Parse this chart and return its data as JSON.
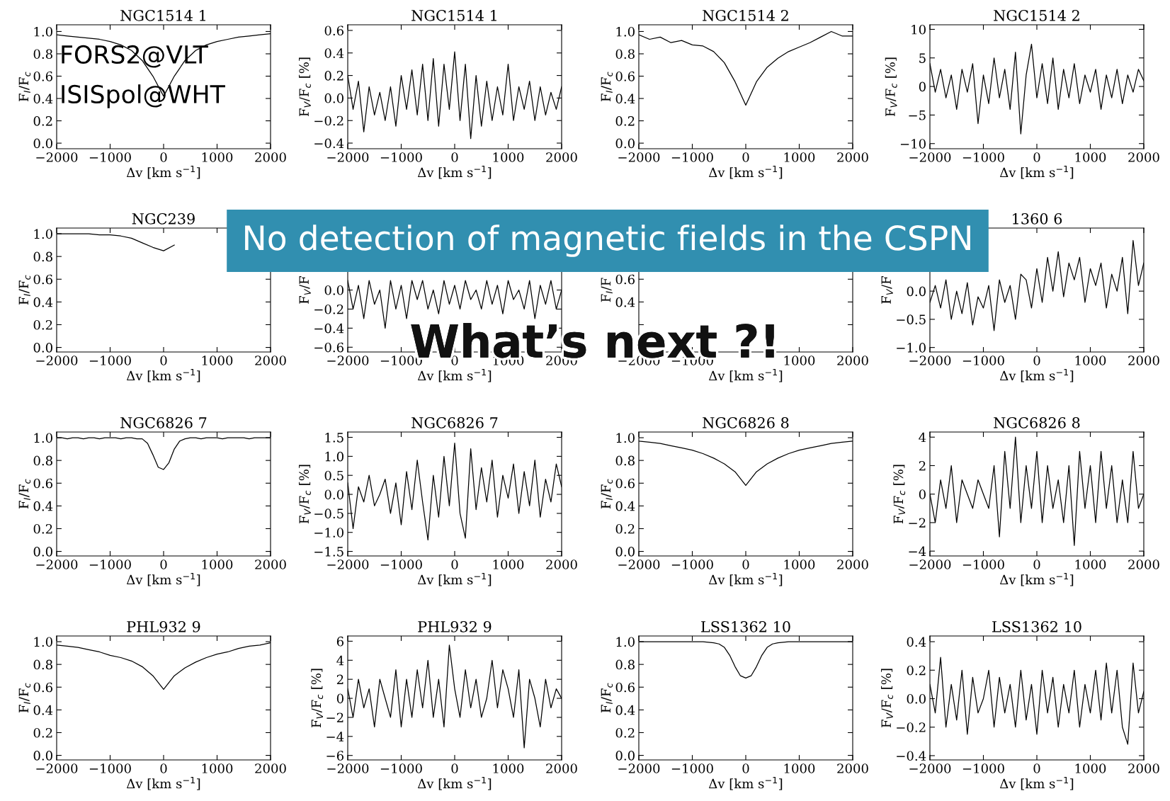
{
  "chart_data": [
    {
      "type": "line",
      "title": "NGC1514 1",
      "xlabel": "Δv [km s$^{−1}$]",
      "ylabel": "F$_{I}$/F$_{c}$",
      "color": "#000000",
      "xlim": [
        -2000,
        2000
      ],
      "ylim": [
        -0.05,
        1.06
      ],
      "xticks": [
        {
          "value": -2000,
          "label": "−2000"
        },
        {
          "value": -1000,
          "label": "−1000"
        },
        0,
        1000,
        2000
      ],
      "yticks": [
        {
          "value": 0,
          "label": "0.0"
        },
        0.2,
        0.4,
        0.6,
        0.8,
        {
          "value": 1,
          "label": "1.0"
        }
      ],
      "x": [
        -2000,
        -1800,
        -1600,
        -1400,
        -1200,
        -1000,
        -800,
        -600,
        -400,
        -200,
        0,
        200,
        400,
        600,
        800,
        1000,
        1200,
        1400,
        1600,
        1800,
        2000
      ],
      "values": [
        0.97,
        0.96,
        0.95,
        0.94,
        0.93,
        0.91,
        0.88,
        0.83,
        0.74,
        0.6,
        0.42,
        0.6,
        0.74,
        0.83,
        0.88,
        0.91,
        0.93,
        0.95,
        0.96,
        0.97,
        0.98
      ],
      "annotations": [
        "FORS2@VLT",
        "ISISpol@WHT",
        "No detection of magnetic fields in the CSPN",
        "What’s next ?!"
      ]
    },
    {
      "type": "line",
      "title": "NGC1514 1",
      "xlabel": "Δv [km s$^{−1}$]",
      "ylabel": "F$_{V}$/F$_{c}$ [%]",
      "color": "#000000",
      "xlim": [
        -2000,
        2000
      ],
      "ylim": [
        -0.45,
        0.65
      ],
      "xticks": [
        {
          "value": -2000,
          "label": "−2000"
        },
        {
          "value": -1000,
          "label": "−1000"
        },
        0,
        1000,
        2000
      ],
      "yticks": [
        {
          "value": -0.4,
          "label": "−0.4"
        },
        {
          "value": -0.2,
          "label": "−0.2"
        },
        {
          "value": 0,
          "label": "0.0"
        },
        0.2,
        0.4,
        0.6
      ],
      "x": [
        -2000,
        -1900,
        -1800,
        -1700,
        -1600,
        -1500,
        -1400,
        -1300,
        -1200,
        -1100,
        -1000,
        -900,
        -800,
        -700,
        -600,
        -500,
        -400,
        -300,
        -200,
        -100,
        0,
        100,
        200,
        300,
        400,
        500,
        600,
        700,
        800,
        900,
        1000,
        1100,
        1200,
        1300,
        1400,
        1500,
        1600,
        1700,
        1800,
        1900,
        2000
      ],
      "values": [
        0.2,
        -0.1,
        0.15,
        -0.3,
        0.1,
        -0.15,
        0.05,
        -0.2,
        0.1,
        -0.25,
        0.2,
        -0.1,
        0.25,
        -0.15,
        0.3,
        -0.2,
        0.35,
        -0.25,
        0.3,
        -0.1,
        0.41,
        -0.2,
        0.3,
        -0.36,
        0.2,
        -0.25,
        0.15,
        -0.2,
        0.1,
        -0.15,
        0.3,
        -0.2,
        0.1,
        -0.1,
        0.15,
        -0.2,
        0.1,
        -0.15,
        0.05,
        -0.1,
        0.1
      ]
    },
    {
      "type": "line",
      "title": "NGC1514 2",
      "xlabel": "Δv [km s$^{−1}$]",
      "ylabel": "F$_{I}$/F$_{c}$",
      "color": "#000000",
      "xlim": [
        -2000,
        2000
      ],
      "ylim": [
        -0.05,
        1.06
      ],
      "xticks": [
        {
          "value": -2000,
          "label": "−2000"
        },
        {
          "value": -1000,
          "label": "−1000"
        },
        0,
        1000,
        2000
      ],
      "yticks": [
        {
          "value": 0,
          "label": "0.0"
        },
        0.2,
        0.4,
        0.6,
        0.8,
        {
          "value": 1,
          "label": "1.0"
        }
      ],
      "x": [
        -2000,
        -1800,
        -1600,
        -1400,
        -1200,
        -1000,
        -800,
        -600,
        -400,
        -200,
        0,
        200,
        400,
        600,
        800,
        1000,
        1200,
        1400,
        1600,
        1800,
        2000
      ],
      "values": [
        0.97,
        0.93,
        0.95,
        0.9,
        0.92,
        0.88,
        0.87,
        0.82,
        0.72,
        0.55,
        0.34,
        0.55,
        0.68,
        0.76,
        0.82,
        0.86,
        0.9,
        0.95,
        1.0,
        0.96,
        0.96
      ]
    },
    {
      "type": "line",
      "title": "NGC1514 2",
      "xlabel": "Δv [km s$^{−1}$]",
      "ylabel": "F$_{V}$/F$_{c}$ [%]",
      "color": "#000000",
      "xlim": [
        -2000,
        2000
      ],
      "ylim": [
        -10.9,
        10.8
      ],
      "xticks": [
        {
          "value": -2000,
          "label": "−2000"
        },
        {
          "value": -1000,
          "label": "−1000"
        },
        0,
        1000,
        2000
      ],
      "yticks": [
        {
          "value": -10,
          "label": "−10"
        },
        {
          "value": -5,
          "label": "−5"
        },
        0,
        5,
        10
      ],
      "x": [
        -2000,
        -1900,
        -1800,
        -1700,
        -1600,
        -1500,
        -1400,
        -1300,
        -1200,
        -1100,
        -1000,
        -900,
        -800,
        -700,
        -600,
        -500,
        -400,
        -300,
        -200,
        -100,
        0,
        100,
        200,
        300,
        400,
        500,
        600,
        700,
        800,
        900,
        1000,
        1100,
        1200,
        1300,
        1400,
        1500,
        1600,
        1700,
        1800,
        1900,
        2000
      ],
      "values": [
        4,
        -1,
        3,
        -2,
        2,
        -4,
        3,
        -1,
        4,
        -6.5,
        2,
        -3,
        5,
        -2,
        3,
        -4,
        6,
        -8.3,
        2,
        7.4,
        -2,
        4,
        -3,
        5,
        -4,
        3,
        -2,
        4,
        -3,
        2,
        -1,
        3,
        -4,
        2,
        -2,
        3,
        -3,
        2,
        -1,
        3,
        1
      ]
    },
    {
      "type": "line",
      "title": "NGC239",
      "xlabel": "Δv [km s$^{−1}$]",
      "ylabel": "F$_{I}$/F$_{c}$",
      "color": "#000000",
      "xlim": [
        -2000,
        2000
      ],
      "ylim": [
        -0.04,
        1.05
      ],
      "xticks": [
        {
          "value": -2000,
          "label": "−2000"
        },
        {
          "value": -1000,
          "label": "−1000"
        },
        0,
        1000,
        2000
      ],
      "yticks": [
        {
          "value": 0,
          "label": "0.0"
        },
        0.2,
        0.4,
        0.6,
        0.8,
        {
          "value": 1,
          "label": "1.0"
        }
      ],
      "x": [
        -2000,
        -1800,
        -1600,
        -1400,
        -1200,
        -1000,
        -800,
        -600,
        -400,
        -200,
        0,
        200
      ],
      "values": [
        1.0,
        1.0,
        1.0,
        1.0,
        0.99,
        0.99,
        0.98,
        0.96,
        0.92,
        0.88,
        0.85,
        0.9
      ]
    },
    {
      "type": "line",
      "xlabel": "Δv [km s$^{−1}$]",
      "ylabel": "F$_{V}$/F",
      "color": "#000000",
      "xlim": [
        -2000,
        2000
      ],
      "ylim": [
        -0.65,
        0.65
      ],
      "xticks": [
        {
          "value": -2000,
          "label": "−2000"
        },
        {
          "value": -1000,
          "label": "−1000"
        },
        0,
        1000,
        2000
      ],
      "yticks": [
        {
          "value": -0.6,
          "label": "−0.6"
        },
        {
          "value": -0.4,
          "label": "−0.4"
        },
        {
          "value": -0.2,
          "label": "−0.2"
        },
        {
          "value": 0,
          "label": "0.0"
        }
      ],
      "x": [
        -2000,
        -1900,
        -1800,
        -1700,
        -1600,
        -1500,
        -1400,
        -1300,
        -1200,
        -1100,
        -1000,
        -900,
        -800,
        -700,
        -600,
        -500,
        -400,
        -300,
        -200,
        -100,
        0,
        100,
        200,
        300,
        400,
        500,
        600,
        700,
        800,
        900,
        1000,
        1100,
        1200,
        1300,
        1400,
        1500,
        1600,
        1700,
        1800,
        1900,
        2000
      ],
      "values": [
        0.1,
        -0.2,
        0.05,
        -0.3,
        0.1,
        -0.15,
        0.0,
        -0.4,
        0.1,
        -0.2,
        0.05,
        -0.3,
        0.1,
        -0.1,
        0.1,
        -0.2,
        0.0,
        -0.25,
        0.1,
        -0.15,
        0.05,
        -0.2,
        0.1,
        -0.1,
        0.0,
        -0.2,
        0.1,
        -0.15,
        0.05,
        -0.25,
        0.1,
        -0.1,
        0.0,
        -0.2,
        0.1,
        -0.3,
        0.05,
        -0.15,
        0.1,
        -0.2,
        0.0
      ]
    },
    {
      "type": "line",
      "xlabel": "Δv [km s$^{−1}$]",
      "ylabel": "F$_{I}$/F",
      "xlim": [
        -2000,
        2000
      ],
      "ylim": [
        -0.04,
        1.05
      ],
      "xticks": [
        {
          "value": -2000,
          "label": "−2000"
        },
        {
          "value": -1000,
          "label": "−1000"
        },
        {
          "value": 0,
          "label": null
        },
        1000,
        2000
      ],
      "yticks": [
        {
          "value": 0.2,
          "label": null
        },
        0.4,
        0.6
      ]
    },
    {
      "type": "line",
      "title": "1360 6",
      "xlabel": "Δv [km s$^{−1}$]",
      "ylabel": "F$_{V}$/F",
      "color": "#000000",
      "xlim": [
        -2000,
        2000
      ],
      "ylim": [
        -1.08,
        1.12
      ],
      "xticks": [
        {
          "value": -2000,
          "label": "−2000"
        },
        {
          "value": -1000,
          "label": "−1000"
        },
        0,
        1000,
        2000
      ],
      "yticks": [
        {
          "value": -1.0,
          "label": "−1.0"
        },
        {
          "value": -0.5,
          "label": "−0.5"
        },
        {
          "value": 0,
          "label": "0.0"
        }
      ],
      "x": [
        -2000,
        -1900,
        -1800,
        -1700,
        -1600,
        -1500,
        -1400,
        -1300,
        -1200,
        -1100,
        -1000,
        -900,
        -800,
        -700,
        -600,
        -500,
        -400,
        -300,
        -200,
        -100,
        0,
        100,
        200,
        300,
        400,
        500,
        600,
        700,
        800,
        900,
        1000,
        1100,
        1200,
        1300,
        1400,
        1500,
        1600,
        1700,
        1800,
        1900,
        2000
      ],
      "values": [
        -0.2,
        0.1,
        -0.3,
        0.2,
        -0.5,
        0.0,
        -0.4,
        0.15,
        -0.6,
        -0.1,
        -0.3,
        0.1,
        -0.7,
        0.2,
        -0.2,
        0.1,
        -0.5,
        0.3,
        0.2,
        -0.3,
        0.4,
        -0.2,
        0.6,
        0.0,
        0.7,
        -0.1,
        0.5,
        0.2,
        0.6,
        -0.2,
        0.4,
        0.1,
        0.5,
        -0.3,
        0.3,
        0.0,
        0.6,
        -0.4,
        0.9,
        0.1,
        0.5
      ]
    },
    {
      "type": "line",
      "title": "NGC6826 7",
      "xlabel": "Δv [km s$^{−1}$]",
      "ylabel": "F$_{I}$/F$_{c}$",
      "color": "#000000",
      "xlim": [
        -2000,
        2000
      ],
      "ylim": [
        -0.04,
        1.05
      ],
      "xticks": [
        {
          "value": -2000,
          "label": "−2000"
        },
        {
          "value": -1000,
          "label": "−1000"
        },
        0,
        1000,
        2000
      ],
      "yticks": [
        {
          "value": 0,
          "label": "0.0"
        },
        0.2,
        0.4,
        0.6,
        0.8,
        {
          "value": 1,
          "label": "1.0"
        }
      ],
      "x": [
        -2000,
        -1900,
        -1800,
        -1700,
        -1600,
        -1500,
        -1400,
        -1300,
        -1200,
        -1100,
        -1000,
        -900,
        -800,
        -700,
        -600,
        -500,
        -400,
        -300,
        -200,
        -100,
        0,
        100,
        200,
        300,
        400,
        500,
        600,
        700,
        800,
        900,
        1000,
        1100,
        1200,
        1300,
        1400,
        1500,
        1600,
        1700,
        1800,
        1900,
        2000
      ],
      "values": [
        1.0,
        1.0,
        0.99,
        1.0,
        1.0,
        0.99,
        1.0,
        1.0,
        0.99,
        1.0,
        1.0,
        1.0,
        0.99,
        1.0,
        1.0,
        0.99,
        0.99,
        0.95,
        0.85,
        0.74,
        0.72,
        0.78,
        0.9,
        0.97,
        0.99,
        1.0,
        1.0,
        0.99,
        1.0,
        1.0,
        1.0,
        0.99,
        1.0,
        1.0,
        1.0,
        1.0,
        0.99,
        1.0,
        1.0,
        1.0,
        1.0
      ]
    },
    {
      "type": "line",
      "title": "NGC6826 7",
      "xlabel": "Δv [km s$^{−1}$]",
      "ylabel": "F$_{V}$/F$_{c}$ [%]",
      "color": "#000000",
      "xlim": [
        -2000,
        2000
      ],
      "ylim": [
        -1.62,
        1.64
      ],
      "xticks": [
        {
          "value": -2000,
          "label": "−2000"
        },
        {
          "value": -1000,
          "label": "−1000"
        },
        0,
        1000,
        2000
      ],
      "yticks": [
        {
          "value": -1.5,
          "label": "−1.5"
        },
        {
          "value": -1.0,
          "label": "−1.0"
        },
        {
          "value": -0.5,
          "label": "−0.5"
        },
        {
          "value": 0,
          "label": "0.0"
        },
        0.5,
        {
          "value": 1,
          "label": "1.0"
        },
        1.5
      ],
      "x": [
        -2000,
        -1900,
        -1800,
        -1700,
        -1600,
        -1500,
        -1400,
        -1300,
        -1200,
        -1100,
        -1000,
        -900,
        -800,
        -700,
        -600,
        -500,
        -400,
        -300,
        -200,
        -100,
        0,
        100,
        200,
        300,
        400,
        500,
        600,
        700,
        800,
        900,
        1000,
        1100,
        1200,
        1300,
        1400,
        1500,
        1600,
        1700,
        1800,
        1900,
        2000
      ],
      "values": [
        0.3,
        -0.9,
        0.2,
        -0.2,
        0.5,
        -0.3,
        0.0,
        0.4,
        -0.5,
        0.3,
        -0.8,
        0.6,
        -0.4,
        0.9,
        -0.2,
        -1.2,
        0.5,
        -0.6,
        1.0,
        -0.3,
        1.35,
        -0.5,
        -1.15,
        1.2,
        -0.4,
        0.7,
        -0.2,
        0.9,
        -0.6,
        0.5,
        -0.1,
        0.8,
        -0.5,
        0.6,
        -0.3,
        0.9,
        -0.6,
        0.4,
        -0.2,
        0.8,
        0.2
      ]
    },
    {
      "type": "line",
      "title": "NGC6826 8",
      "xlabel": "Δv [km s$^{−1}$]",
      "ylabel": "F$_{I}$/F$_{c}$",
      "color": "#000000",
      "xlim": [
        -2000,
        2000
      ],
      "ylim": [
        -0.04,
        1.05
      ],
      "xticks": [
        {
          "value": -2000,
          "label": "−2000"
        },
        {
          "value": -1000,
          "label": "−1000"
        },
        0,
        1000,
        2000
      ],
      "yticks": [
        {
          "value": 0,
          "label": "0.0"
        },
        0.2,
        0.4,
        0.6,
        0.8,
        {
          "value": 1,
          "label": "1.0"
        }
      ],
      "x": [
        -2000,
        -1800,
        -1600,
        -1400,
        -1200,
        -1000,
        -800,
        -600,
        -400,
        -200,
        0,
        200,
        400,
        600,
        800,
        1000,
        1200,
        1400,
        1600,
        1800,
        2000
      ],
      "values": [
        0.97,
        0.96,
        0.95,
        0.93,
        0.91,
        0.89,
        0.86,
        0.82,
        0.77,
        0.7,
        0.58,
        0.7,
        0.77,
        0.82,
        0.86,
        0.89,
        0.91,
        0.93,
        0.95,
        0.96,
        0.97
      ]
    },
    {
      "type": "line",
      "title": "NGC6826 8",
      "xlabel": "Δv [km s$^{−1}$]",
      "ylabel": "F$_{V}$/F$_{c}$ [%]",
      "color": "#000000",
      "xlim": [
        -2000,
        2000
      ],
      "ylim": [
        -4.34,
        4.36
      ],
      "xticks": [
        {
          "value": -2000,
          "label": "−2000"
        },
        {
          "value": -1000,
          "label": "−1000"
        },
        0,
        1000,
        2000
      ],
      "yticks": [
        {
          "value": -4,
          "label": "−4"
        },
        {
          "value": -2,
          "label": "−2"
        },
        0,
        2,
        4
      ],
      "x": [
        -2000,
        -1900,
        -1800,
        -1700,
        -1600,
        -1500,
        -1400,
        -1300,
        -1200,
        -1100,
        -1000,
        -900,
        -800,
        -700,
        -600,
        -500,
        -400,
        -300,
        -200,
        -100,
        0,
        100,
        200,
        300,
        400,
        500,
        600,
        700,
        800,
        900,
        1000,
        1100,
        1200,
        1300,
        1400,
        1500,
        1600,
        1700,
        1800,
        1900,
        2000
      ],
      "values": [
        0,
        -2,
        1,
        -1,
        2,
        -2,
        1,
        0,
        -1,
        1,
        0,
        -1,
        2,
        -3,
        3,
        -1,
        4,
        -2,
        2,
        -1,
        3,
        -2,
        2,
        -1,
        1,
        -2,
        2,
        -3.6,
        3,
        -1,
        2,
        -2,
        3,
        -1,
        2,
        -2,
        1,
        -2,
        3,
        -1,
        0
      ]
    },
    {
      "type": "line",
      "title": "PHL932 9",
      "xlabel": "Δv [km s$^{−1}$]",
      "ylabel": "F$_{I}$/F$_{c}$",
      "color": "#000000",
      "xlim": [
        -2000,
        2000
      ],
      "ylim": [
        -0.04,
        1.05
      ],
      "xticks": [
        {
          "value": -2000,
          "label": "−2000"
        },
        {
          "value": -1000,
          "label": "−1000"
        },
        0,
        1000,
        2000
      ],
      "yticks": [
        {
          "value": 0,
          "label": "0.0"
        },
        0.2,
        0.4,
        0.6,
        0.8,
        {
          "value": 1,
          "label": "1.0"
        }
      ],
      "x": [
        -2000,
        -1800,
        -1600,
        -1400,
        -1200,
        -1000,
        -800,
        -600,
        -400,
        -200,
        0,
        200,
        400,
        600,
        800,
        1000,
        1200,
        1400,
        1600,
        1800,
        2000
      ],
      "values": [
        0.97,
        0.96,
        0.95,
        0.93,
        0.91,
        0.88,
        0.86,
        0.83,
        0.78,
        0.7,
        0.58,
        0.7,
        0.77,
        0.82,
        0.86,
        0.89,
        0.91,
        0.94,
        0.96,
        0.97,
        0.99
      ]
    },
    {
      "type": "line",
      "title": "PHL932 9",
      "xlabel": "Δv [km s$^{−1}$]",
      "ylabel": "F$_{V}$/F$_{c}$ [%]",
      "color": "#000000",
      "xlim": [
        -2000,
        2000
      ],
      "ylim": [
        -6.47,
        6.55
      ],
      "xticks": [
        {
          "value": -2000,
          "label": "−2000"
        },
        {
          "value": -1000,
          "label": "−1000"
        },
        0,
        1000,
        2000
      ],
      "yticks": [
        {
          "value": -6,
          "label": "−6"
        },
        {
          "value": -4,
          "label": "−4"
        },
        {
          "value": -2,
          "label": "−2"
        },
        0,
        2,
        4,
        6
      ],
      "x": [
        -2000,
        -1900,
        -1800,
        -1700,
        -1600,
        -1500,
        -1400,
        -1300,
        -1200,
        -1100,
        -1000,
        -900,
        -800,
        -700,
        -600,
        -500,
        -400,
        -300,
        -200,
        -100,
        0,
        100,
        200,
        300,
        400,
        500,
        600,
        700,
        800,
        900,
        1000,
        1100,
        1200,
        1300,
        1400,
        1500,
        1600,
        1700,
        1800,
        1900,
        2000
      ],
      "values": [
        1,
        -2,
        2,
        -1,
        1,
        -3,
        2,
        0,
        -2,
        3,
        -3,
        2,
        -2,
        3,
        -1,
        4,
        -2,
        2,
        -3,
        5.6,
        1,
        -2,
        3,
        -1,
        2,
        -2,
        0,
        4,
        -1,
        3,
        1,
        -2,
        3,
        -5.2,
        2,
        0,
        -3,
        2,
        -1,
        1,
        0
      ]
    },
    {
      "type": "line",
      "title": "LSS1362 10",
      "xlabel": "Δv [km s$^{−1}$]",
      "ylabel": "F$_{I}$/F$_{c}$",
      "color": "#000000",
      "xlim": [
        -2000,
        2000
      ],
      "ylim": [
        -0.04,
        1.05
      ],
      "xticks": [
        {
          "value": -2000,
          "label": "−2000"
        },
        {
          "value": -1000,
          "label": "−1000"
        },
        0,
        1000,
        2000
      ],
      "yticks": [
        {
          "value": 0,
          "label": "0.0"
        },
        0.2,
        0.4,
        0.6,
        0.8,
        {
          "value": 1,
          "label": "1.0"
        }
      ],
      "x": [
        -2000,
        -1600,
        -1200,
        -800,
        -600,
        -500,
        -400,
        -300,
        -200,
        -100,
        0,
        100,
        200,
        300,
        400,
        500,
        600,
        800,
        1200,
        1600,
        2000
      ],
      "values": [
        1.0,
        1.0,
        1.0,
        1.0,
        0.99,
        0.98,
        0.95,
        0.88,
        0.78,
        0.7,
        0.68,
        0.7,
        0.78,
        0.88,
        0.95,
        0.98,
        0.99,
        1.0,
        1.0,
        1.0,
        1.0
      ]
    },
    {
      "type": "line",
      "title": "LSS1362 10",
      "xlabel": "Δv [km s$^{−1}$]",
      "ylabel": "F$_{V}$/F$_{c}$ [%]",
      "color": "#000000",
      "xlim": [
        -2000,
        2000
      ],
      "ylim": [
        -0.43,
        0.44
      ],
      "xticks": [
        {
          "value": -2000,
          "label": "−2000"
        },
        {
          "value": -1000,
          "label": "−1000"
        },
        0,
        1000,
        2000
      ],
      "yticks": [
        {
          "value": -0.4,
          "label": "−0.4"
        },
        {
          "value": -0.2,
          "label": "−0.2"
        },
        {
          "value": 0,
          "label": "0.0"
        },
        0.2,
        0.4
      ],
      "x": [
        -2000,
        -1900,
        -1800,
        -1700,
        -1600,
        -1500,
        -1400,
        -1300,
        -1200,
        -1100,
        -1000,
        -900,
        -800,
        -700,
        -600,
        -500,
        -400,
        -300,
        -200,
        -100,
        0,
        100,
        200,
        300,
        400,
        500,
        600,
        700,
        800,
        900,
        1000,
        1100,
        1200,
        1300,
        1400,
        1500,
        1600,
        1700,
        1800,
        1900,
        2000
      ],
      "values": [
        0.1,
        -0.1,
        0.29,
        -0.2,
        0.1,
        -0.15,
        0.2,
        -0.25,
        0.15,
        -0.1,
        0.0,
        0.2,
        -0.2,
        0.15,
        -0.1,
        0.1,
        -0.2,
        0.2,
        -0.15,
        0.1,
        -0.25,
        0.2,
        -0.1,
        0.15,
        -0.2,
        0.1,
        -0.1,
        0.2,
        -0.2,
        0.1,
        -0.1,
        0.2,
        -0.15,
        0.25,
        -0.1,
        0.2,
        -0.2,
        -0.32,
        0.25,
        -0.1,
        0.05
      ]
    }
  ]
}
